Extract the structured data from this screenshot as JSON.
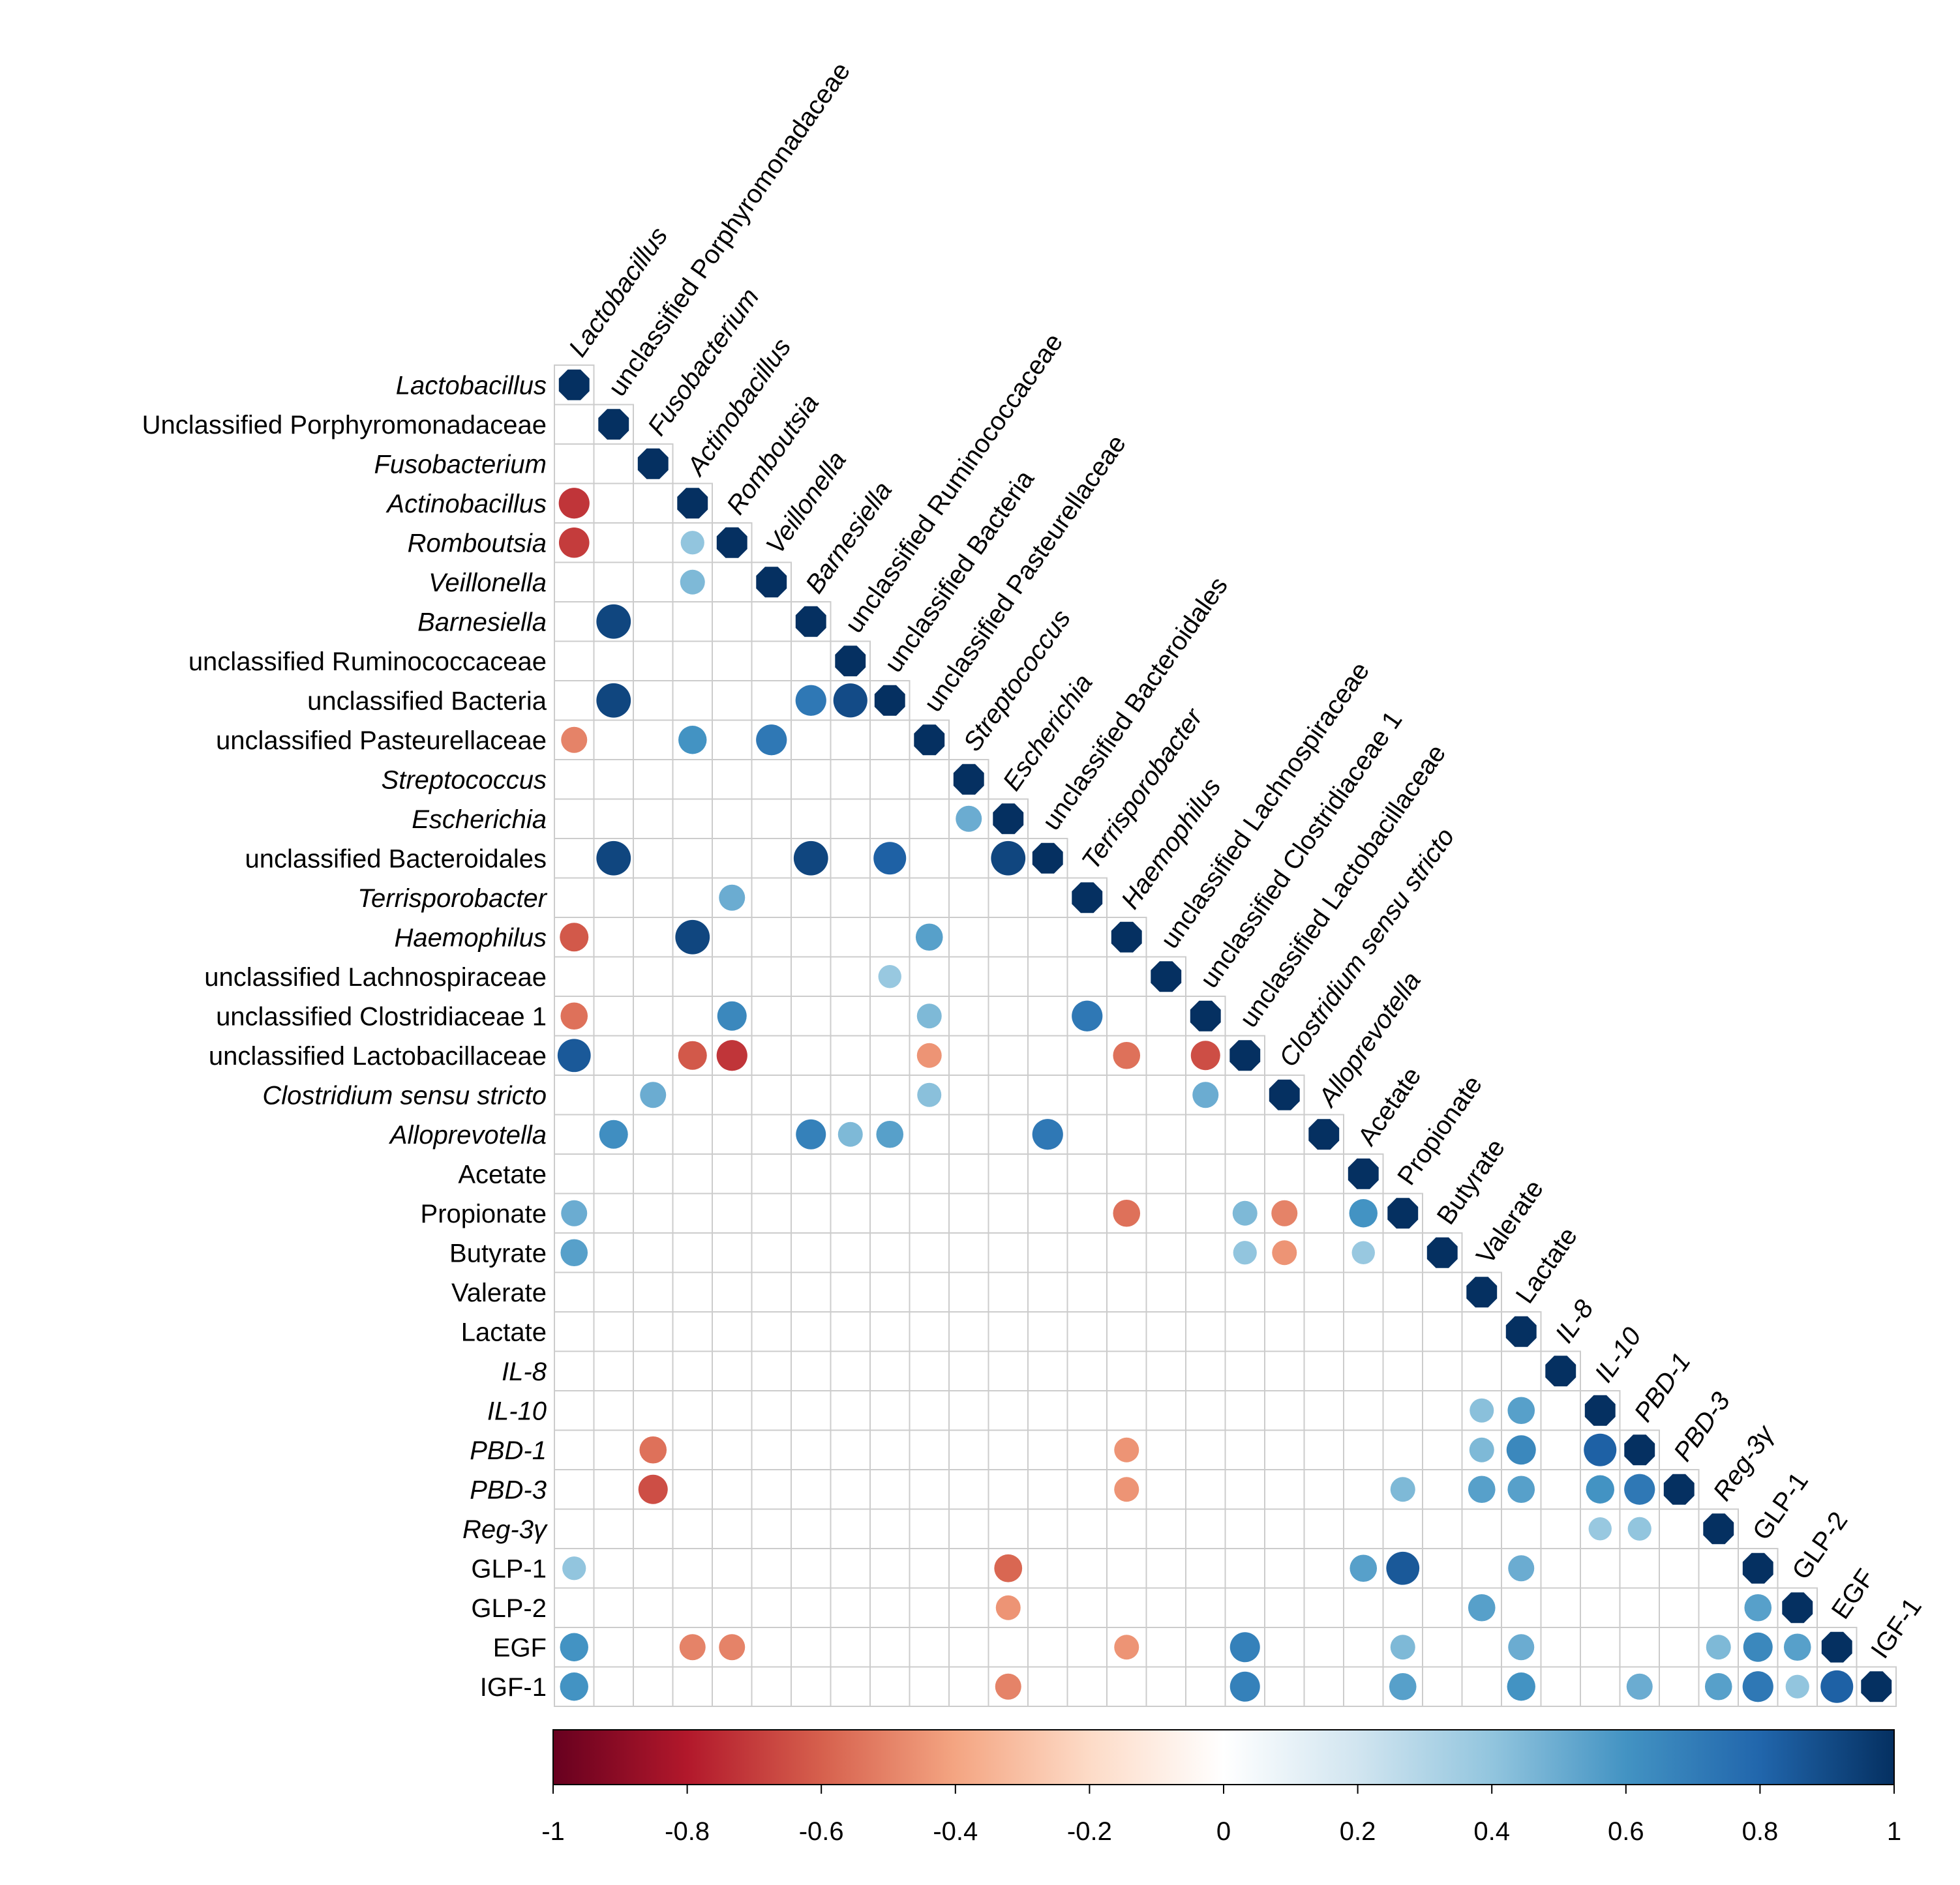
{
  "chart_data": {
    "type": "heatmap",
    "subtype": "correlation-matrix-lower-triangle",
    "labels": [
      {
        "text": "Lactobacillus",
        "col_text": "Lactobacillus",
        "italic": true
      },
      {
        "text": "Unclassified Porphyromonadaceae",
        "col_text": "unclassified Porphyromonadaceae",
        "italic": false
      },
      {
        "text": "Fusobacterium",
        "col_text": "Fusobacterium",
        "italic": true
      },
      {
        "text": "Actinobacillus",
        "col_text": "Actinobacillus",
        "italic": true
      },
      {
        "text": "Romboutsia",
        "col_text": "Romboutsia",
        "italic": true
      },
      {
        "text": "Veillonella",
        "col_text": "Veillonella",
        "italic": true
      },
      {
        "text": "Barnesiella",
        "col_text": "Barnesiella",
        "italic": true
      },
      {
        "text": "unclassified Ruminococcaceae",
        "col_text": "unclassified Ruminococcaceae",
        "italic": false
      },
      {
        "text": "unclassified Bacteria",
        "col_text": "unclassified Bacteria",
        "italic": false
      },
      {
        "text": "unclassified Pasteurellaceae",
        "col_text": "unclassified Pasteurellaceae",
        "italic": false
      },
      {
        "text": "Streptococcus",
        "col_text": "Streptococcus",
        "italic": true
      },
      {
        "text": "Escherichia",
        "col_text": "Escherichia",
        "italic": true
      },
      {
        "text": "unclassified Bacteroidales",
        "col_text": "unclassified Bacteroidales",
        "italic": false
      },
      {
        "text": "Terrisporobacter",
        "col_text": "Terrisporobacter",
        "italic": true
      },
      {
        "text": "Haemophilus",
        "col_text": "Haemophilus",
        "italic": true
      },
      {
        "text": "unclassified Lachnospiraceae",
        "col_text": "unclassified Lachnospiraceae",
        "italic": false
      },
      {
        "text": "unclassified Clostridiaceae 1",
        "col_text": "unclassified Clostridiaceae 1",
        "italic": false
      },
      {
        "text": "unclassified Lactobacillaceae",
        "col_text": "unclassified Lactobacillaceae",
        "italic": false
      },
      {
        "text": "Clostridium sensu stricto",
        "col_text": "Clostridium sensu stricto",
        "italic": true
      },
      {
        "text": "Alloprevotella",
        "col_text": "Alloprevotella",
        "italic": true
      },
      {
        "text": "Acetate",
        "col_text": "Acetate",
        "italic": false
      },
      {
        "text": "Propionate",
        "col_text": "Propionate",
        "italic": false
      },
      {
        "text": "Butyrate",
        "col_text": "Butyrate",
        "italic": false
      },
      {
        "text": "Valerate",
        "col_text": "Valerate",
        "italic": false
      },
      {
        "text": "Lactate",
        "col_text": "Lactate",
        "italic": false
      },
      {
        "text": "IL-8",
        "col_text": "IL-8",
        "italic": true
      },
      {
        "text": "IL-10",
        "col_text": "IL-10",
        "italic": true
      },
      {
        "text": "PBD-1",
        "col_text": "PBD-1",
        "italic": true
      },
      {
        "text": "PBD-3",
        "col_text": "PBD-3",
        "italic": true
      },
      {
        "text": "Reg-3γ",
        "col_text": "Reg-3γ",
        "italic": true
      },
      {
        "text": "GLP-1",
        "col_text": "GLP-1",
        "italic": false
      },
      {
        "text": "GLP-2",
        "col_text": "GLP-2",
        "italic": false
      },
      {
        "text": "EGF",
        "col_text": "EGF",
        "italic": false
      },
      {
        "text": "IGF-1",
        "col_text": "IGF-1",
        "italic": false
      }
    ],
    "correlations": [
      [
        3,
        0,
        -0.72
      ],
      [
        4,
        0,
        -0.7
      ],
      [
        4,
        3,
        0.4
      ],
      [
        5,
        3,
        0.45
      ],
      [
        6,
        1,
        0.92
      ],
      [
        8,
        1,
        0.92
      ],
      [
        8,
        6,
        0.72
      ],
      [
        8,
        7,
        0.9
      ],
      [
        9,
        0,
        -0.5
      ],
      [
        9,
        3,
        0.6
      ],
      [
        9,
        5,
        0.72
      ],
      [
        11,
        10,
        0.5
      ],
      [
        12,
        1,
        0.92
      ],
      [
        12,
        6,
        0.92
      ],
      [
        12,
        8,
        0.82
      ],
      [
        12,
        11,
        0.92
      ],
      [
        13,
        4,
        0.5
      ],
      [
        14,
        0,
        -0.62
      ],
      [
        14,
        3,
        0.92
      ],
      [
        14,
        9,
        0.55
      ],
      [
        15,
        8,
        0.38
      ],
      [
        16,
        0,
        -0.55
      ],
      [
        16,
        4,
        0.65
      ],
      [
        16,
        9,
        0.45
      ],
      [
        16,
        13,
        0.72
      ],
      [
        17,
        0,
        0.85
      ],
      [
        17,
        3,
        -0.62
      ],
      [
        17,
        4,
        -0.72
      ],
      [
        17,
        9,
        -0.45
      ],
      [
        17,
        14,
        -0.55
      ],
      [
        17,
        16,
        -0.65
      ],
      [
        18,
        2,
        0.5
      ],
      [
        18,
        9,
        0.42
      ],
      [
        18,
        16,
        0.5
      ],
      [
        19,
        1,
        0.62
      ],
      [
        19,
        6,
        0.68
      ],
      [
        19,
        7,
        0.45
      ],
      [
        19,
        8,
        0.55
      ],
      [
        19,
        12,
        0.72
      ],
      [
        21,
        0,
        0.5
      ],
      [
        21,
        14,
        -0.55
      ],
      [
        21,
        17,
        0.45
      ],
      [
        21,
        18,
        -0.5
      ],
      [
        21,
        20,
        0.6
      ],
      [
        22,
        0,
        0.55
      ],
      [
        22,
        17,
        0.4
      ],
      [
        22,
        18,
        -0.45
      ],
      [
        22,
        20,
        0.38
      ],
      [
        26,
        23,
        0.42
      ],
      [
        26,
        24,
        0.55
      ],
      [
        27,
        2,
        -0.55
      ],
      [
        27,
        14,
        -0.45
      ],
      [
        27,
        23,
        0.45
      ],
      [
        27,
        24,
        0.65
      ],
      [
        27,
        26,
        0.82
      ],
      [
        28,
        2,
        -0.65
      ],
      [
        28,
        14,
        -0.45
      ],
      [
        28,
        21,
        0.45
      ],
      [
        28,
        23,
        0.55
      ],
      [
        28,
        24,
        0.55
      ],
      [
        28,
        26,
        0.6
      ],
      [
        28,
        27,
        0.72
      ],
      [
        29,
        26,
        0.38
      ],
      [
        29,
        27,
        0.4
      ],
      [
        30,
        0,
        0.4
      ],
      [
        30,
        11,
        -0.58
      ],
      [
        30,
        20,
        0.55
      ],
      [
        30,
        21,
        0.85
      ],
      [
        30,
        24,
        0.5
      ],
      [
        31,
        11,
        -0.45
      ],
      [
        31,
        23,
        0.55
      ],
      [
        31,
        30,
        0.55
      ],
      [
        32,
        0,
        0.6
      ],
      [
        32,
        3,
        -0.5
      ],
      [
        32,
        4,
        -0.5
      ],
      [
        32,
        14,
        -0.45
      ],
      [
        32,
        17,
        0.68
      ],
      [
        32,
        21,
        0.45
      ],
      [
        32,
        24,
        0.5
      ],
      [
        32,
        29,
        0.45
      ],
      [
        32,
        30,
        0.65
      ],
      [
        32,
        31,
        0.55
      ],
      [
        33,
        0,
        0.6
      ],
      [
        33,
        11,
        -0.5
      ],
      [
        33,
        17,
        0.68
      ],
      [
        33,
        21,
        0.55
      ],
      [
        33,
        24,
        0.6
      ],
      [
        33,
        27,
        0.5
      ],
      [
        33,
        29,
        0.55
      ],
      [
        33,
        30,
        0.72
      ],
      [
        33,
        31,
        0.4
      ],
      [
        33,
        32,
        0.82
      ]
    ],
    "diagonal_value": 1,
    "color_scale": {
      "range": [
        -1,
        1
      ],
      "ticks": [
        "-1",
        "-0.8",
        "-0.6",
        "-0.4",
        "-0.2",
        "0",
        "0.2",
        "0.4",
        "0.6",
        "0.8",
        "1"
      ],
      "stops": [
        "#67001f",
        "#b2182b",
        "#d6604d",
        "#f4a582",
        "#fddbc7",
        "#ffffff",
        "#d1e5f0",
        "#92c5de",
        "#4393c3",
        "#2166ac",
        "#053061"
      ],
      "legend_placement": "bottom"
    },
    "colors": {
      "grid": "#cccccc",
      "negative": "#e8524a",
      "positive": "#0e8cc7",
      "diagonal": "#0b2c5e"
    }
  }
}
